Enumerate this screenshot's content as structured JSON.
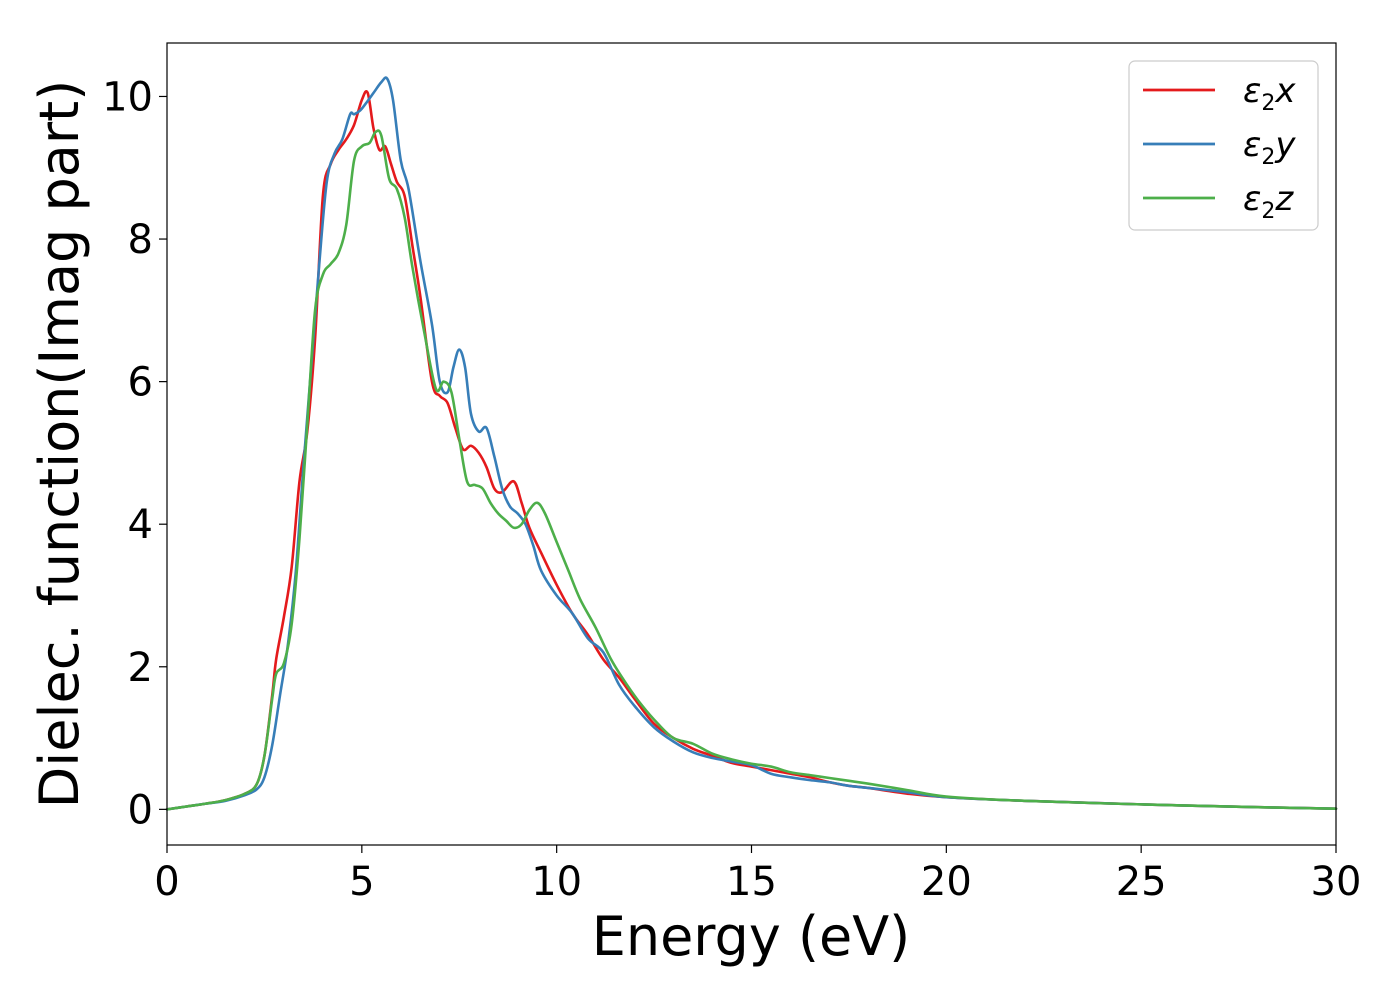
{
  "chart_data": {
    "type": "line",
    "title": "",
    "xlabel": "Energy (eV)",
    "ylabel": "Dielec. function(Imag part)",
    "xlim": [
      0,
      30
    ],
    "ylim": [
      -0.5,
      10.75
    ],
    "xticks": [
      0,
      5,
      10,
      15,
      20,
      25,
      30
    ],
    "yticks": [
      0,
      2,
      4,
      6,
      8,
      10
    ],
    "grid": false,
    "legend_position": "top-right",
    "series": [
      {
        "name": "ε2x",
        "legend_base": "ε",
        "legend_sub": "2",
        "legend_var": "x",
        "color": "#e41a1c",
        "x": [
          0,
          0.5,
          1.0,
          1.5,
          2.0,
          2.3,
          2.5,
          2.7,
          2.8,
          3.0,
          3.2,
          3.4,
          3.6,
          3.8,
          4.0,
          4.2,
          4.4,
          4.6,
          4.8,
          5.0,
          5.15,
          5.3,
          5.45,
          5.6,
          5.75,
          5.9,
          6.1,
          6.3,
          6.5,
          6.8,
          7.0,
          7.2,
          7.4,
          7.6,
          7.8,
          8.0,
          8.2,
          8.4,
          8.6,
          8.9,
          9.1,
          9.3,
          9.6,
          10.0,
          10.4,
          10.8,
          11.2,
          11.6,
          12.0,
          12.5,
          13.0,
          13.5,
          14.0,
          14.5,
          15.0,
          15.5,
          16.0,
          16.5,
          17.0,
          17.5,
          18.0,
          19.0,
          20.0,
          22.0,
          25.0,
          28.0,
          30.0
        ],
        "values": [
          0,
          0.04,
          0.08,
          0.13,
          0.22,
          0.35,
          0.75,
          1.6,
          2.1,
          2.7,
          3.4,
          4.6,
          5.3,
          6.6,
          8.6,
          9.05,
          9.25,
          9.4,
          9.6,
          9.95,
          10.05,
          9.55,
          9.25,
          9.3,
          9.05,
          8.8,
          8.6,
          7.9,
          7.2,
          6.0,
          5.8,
          5.7,
          5.35,
          5.05,
          5.1,
          5.0,
          4.8,
          4.5,
          4.45,
          4.6,
          4.3,
          3.95,
          3.6,
          3.15,
          2.75,
          2.45,
          2.1,
          1.85,
          1.55,
          1.2,
          1.0,
          0.85,
          0.75,
          0.65,
          0.6,
          0.55,
          0.5,
          0.45,
          0.38,
          0.33,
          0.3,
          0.22,
          0.17,
          0.12,
          0.07,
          0.03,
          0.01
        ]
      },
      {
        "name": "ε2y",
        "legend_base": "ε",
        "legend_sub": "2",
        "legend_var": "y",
        "color": "#377eb8",
        "x": [
          0,
          0.5,
          1.0,
          1.5,
          2.0,
          2.3,
          2.5,
          2.7,
          2.9,
          3.1,
          3.3,
          3.5,
          3.7,
          3.9,
          4.1,
          4.3,
          4.5,
          4.7,
          4.8,
          4.95,
          5.1,
          5.3,
          5.5,
          5.65,
          5.8,
          6.0,
          6.2,
          6.5,
          6.8,
          7.0,
          7.2,
          7.35,
          7.5,
          7.65,
          7.8,
          8.0,
          8.2,
          8.4,
          8.6,
          8.8,
          9.0,
          9.2,
          9.4,
          9.6,
          10.0,
          10.4,
          10.8,
          11.2,
          11.6,
          12.0,
          12.5,
          13.0,
          13.5,
          14.0,
          14.5,
          15.0,
          15.5,
          16.0,
          16.5,
          17.0,
          17.5,
          18.0,
          19.0,
          20.0,
          22.0,
          25.0,
          28.0,
          30.0
        ],
        "values": [
          0,
          0.04,
          0.08,
          0.12,
          0.2,
          0.28,
          0.45,
          0.9,
          1.6,
          2.3,
          3.3,
          4.8,
          6.2,
          7.6,
          8.8,
          9.2,
          9.4,
          9.75,
          9.75,
          9.8,
          9.9,
          10.05,
          10.2,
          10.25,
          9.95,
          9.1,
          8.7,
          7.7,
          6.8,
          6.0,
          5.85,
          6.2,
          6.45,
          6.2,
          5.55,
          5.3,
          5.35,
          4.95,
          4.5,
          4.25,
          4.15,
          4.0,
          3.7,
          3.35,
          3.0,
          2.75,
          2.4,
          2.2,
          1.75,
          1.45,
          1.15,
          0.95,
          0.8,
          0.72,
          0.67,
          0.62,
          0.5,
          0.45,
          0.41,
          0.38,
          0.33,
          0.3,
          0.24,
          0.17,
          0.12,
          0.07,
          0.03,
          0.01
        ]
      },
      {
        "name": "ε2z",
        "legend_base": "ε",
        "legend_sub": "2",
        "legend_var": "z",
        "color": "#4daf4a",
        "x": [
          0,
          0.5,
          1.0,
          1.5,
          2.0,
          2.3,
          2.5,
          2.7,
          2.8,
          3.0,
          3.2,
          3.4,
          3.6,
          3.8,
          4.0,
          4.2,
          4.4,
          4.6,
          4.8,
          5.0,
          5.2,
          5.35,
          5.5,
          5.7,
          5.9,
          6.1,
          6.3,
          6.6,
          6.9,
          7.1,
          7.3,
          7.5,
          7.7,
          7.9,
          8.1,
          8.3,
          8.5,
          8.7,
          8.9,
          9.1,
          9.3,
          9.5,
          9.7,
          10.0,
          10.3,
          10.6,
          11.0,
          11.4,
          11.8,
          12.2,
          12.6,
          13.0,
          13.5,
          14.0,
          14.5,
          15.0,
          15.5,
          16.0,
          16.5,
          17.0,
          17.5,
          18.0,
          19.0,
          20.0,
          22.0,
          25.0,
          28.0,
          30.0
        ],
        "values": [
          0,
          0.04,
          0.08,
          0.13,
          0.22,
          0.35,
          0.75,
          1.55,
          1.9,
          2.05,
          2.6,
          3.8,
          5.4,
          7.0,
          7.5,
          7.65,
          7.8,
          8.2,
          9.1,
          9.3,
          9.35,
          9.5,
          9.45,
          8.85,
          8.7,
          8.3,
          7.6,
          6.7,
          5.9,
          6.0,
          5.85,
          5.2,
          4.6,
          4.55,
          4.5,
          4.3,
          4.15,
          4.05,
          3.95,
          4.0,
          4.2,
          4.3,
          4.15,
          3.75,
          3.35,
          2.95,
          2.55,
          2.1,
          1.75,
          1.45,
          1.2,
          1.0,
          0.92,
          0.78,
          0.7,
          0.64,
          0.6,
          0.52,
          0.48,
          0.44,
          0.4,
          0.36,
          0.27,
          0.18,
          0.12,
          0.07,
          0.03,
          0.01
        ]
      }
    ]
  }
}
